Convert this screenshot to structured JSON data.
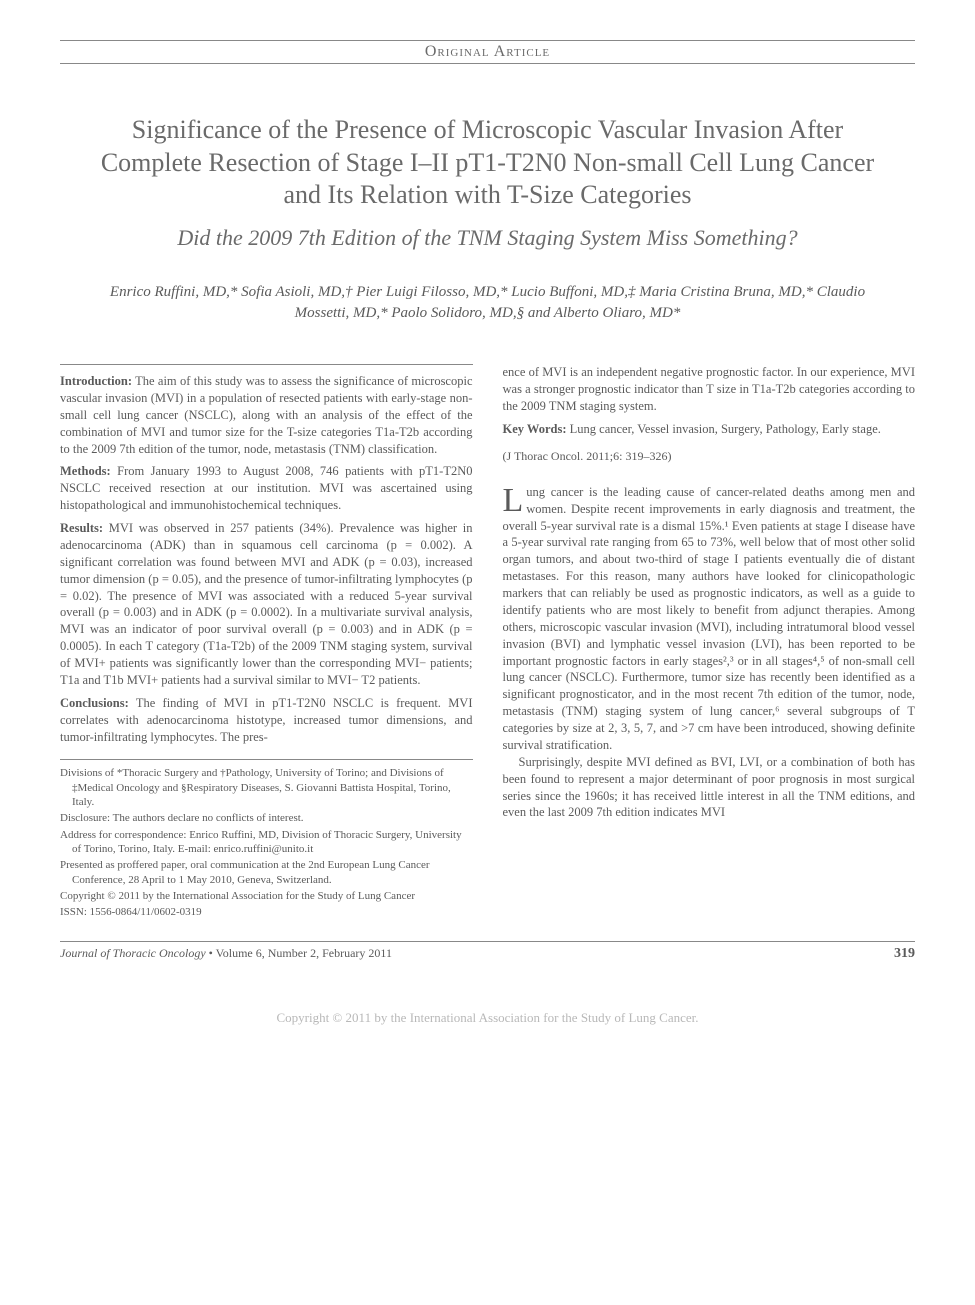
{
  "header": {
    "section_label": "Original Article"
  },
  "article": {
    "title": "Significance of the Presence of Microscopic Vascular Invasion After Complete Resection of Stage I–II pT1-T2N0 Non-small Cell Lung Cancer and Its Relation with T-Size Categories",
    "subtitle": "Did the 2009 7th Edition of the TNM Staging System Miss Something?",
    "authors": "Enrico Ruffini, MD,* Sofia Asioli, MD,† Pier Luigi Filosso, MD,* Lucio Buffoni, MD,‡ Maria Cristina Bruna, MD,* Claudio Mossetti, MD,* Paolo Solidoro, MD,§ and Alberto Oliaro, MD*"
  },
  "abstract": {
    "introduction_label": "Introduction:",
    "introduction_text": " The aim of this study was to assess the significance of microscopic vascular invasion (MVI) in a population of resected patients with early-stage non-small cell lung cancer (NSCLC), along with an analysis of the effect of the combination of MVI and tumor size for the T-size categories T1a-T2b according to the 2009 7th edition of the tumor, node, metastasis (TNM) classification.",
    "methods_label": "Methods:",
    "methods_text": " From January 1993 to August 2008, 746 patients with pT1-T2N0 NSCLC received resection at our institution. MVI was ascertained using histopathological and immunohistochemical techniques.",
    "results_label": "Results:",
    "results_text": " MVI was observed in 257 patients (34%). Prevalence was higher in adenocarcinoma (ADK) than in squamous cell carcinoma (p = 0.002). A significant correlation was found between MVI and ADK (p = 0.03), increased tumor dimension (p = 0.05), and the presence of tumor-infiltrating lymphocytes (p = 0.02). The presence of MVI was associated with a reduced 5-year survival overall (p = 0.003) and in ADK (p = 0.0002). In a multivariate survival analysis, MVI was an indicator of poor survival overall (p = 0.003) and in ADK (p = 0.0005). In each T category (T1a-T2b) of the 2009 TNM staging system, survival of MVI+ patients was significantly lower than the corresponding MVI− patients; T1a and T1b MVI+ patients had a survival similar to MVI− T2 patients.",
    "conclusions_label": "Conclusions:",
    "conclusions_text": " The finding of MVI in pT1-T2N0 NSCLC is frequent. MVI correlates with adenocarcinoma histotype, increased tumor dimensions, and tumor-infiltrating lymphocytes. The pres-",
    "continuation": "ence of MVI is an independent negative prognostic factor. In our experience, MVI was a stronger prognostic indicator than T size in T1a-T2b categories according to the 2009 TNM staging system.",
    "keywords_label": "Key Words:",
    "keywords_text": " Lung cancer, Vessel invasion, Surgery, Pathology, Early stage.",
    "citation": "(J Thorac Oncol. 2011;6: 319–326)"
  },
  "body": {
    "para1": "ung cancer is the leading cause of cancer-related deaths among men and women. Despite recent improvements in early diagnosis and treatment, the overall 5-year survival rate is a dismal 15%.¹ Even patients at stage I disease have a 5-year survival rate ranging from 65 to 73%, well below that of most other solid organ tumors, and about two-third of stage I patients eventually die of distant metastases. For this reason, many authors have looked for clinicopathologic markers that can reliably be used as prognostic indicators, as well as a guide to identify patients who are most likely to benefit from adjunct therapies. Among others, microscopic vascular invasion (MVI), including intratumoral blood vessel invasion (BVI) and lymphatic vessel invasion (LVI), has been reported to be important prognostic factors in early stages²,³ or in all stages⁴,⁵ of non-small cell lung cancer (NSCLC). Furthermore, tumor size has recently been identified as a significant prognosticator, and in the most recent 7th edition of the tumor, node, metastasis (TNM) staging system of lung cancer,⁶ several subgroups of T categories by size at 2, 3, 5, 7, and >7 cm have been introduced, showing definite survival stratification.",
    "para2": "Surprisingly, despite MVI defined as BVI, LVI, or a combination of both has been found to represent a major determinant of poor prognosis in most surgical series since the 1960s; it has received little interest in all the TNM editions, and even the last 2009 7th edition indicates MVI"
  },
  "footnotes": {
    "affiliations": "Divisions of *Thoracic Surgery and †Pathology, University of Torino; and Divisions of ‡Medical Oncology and §Respiratory Diseases, S. Giovanni Battista Hospital, Torino, Italy.",
    "disclosure": "Disclosure: The authors declare no conflicts of interest.",
    "correspondence": "Address for correspondence: Enrico Ruffini, MD, Division of Thoracic Surgery, University of Torino, Torino, Italy. E-mail: enrico.ruffini@unito.it",
    "presented": "Presented as proffered paper, oral communication at the 2nd European Lung Cancer Conference, 28 April to 1 May 2010, Geneva, Switzerland.",
    "copyright": "Copyright © 2011 by the International Association for the Study of Lung Cancer",
    "issn": "ISSN: 1556-0864/11/0602-0319"
  },
  "footer": {
    "journal": "Journal of Thoracic Oncology",
    "issue": " • Volume 6, Number 2, February 2011",
    "page_number": "319",
    "copyright_bar": "Copyright © 2011 by the International Association for the Study of Lung Cancer."
  }
}
